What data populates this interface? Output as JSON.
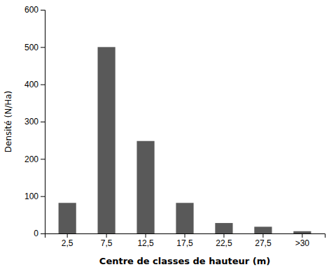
{
  "chart_data": {
    "type": "bar",
    "categories": [
      "2,5",
      "7,5",
      "12,5",
      "17,5",
      "22,5",
      "27,5",
      ">30"
    ],
    "values": [
      82,
      500,
      248,
      82,
      28,
      18,
      6
    ],
    "color": "#595959",
    "xlabel": "Centre de classes de hauteur (m)",
    "ylabel": "Densité (N/Ha)",
    "ylim": [
      0,
      600
    ],
    "yticks": [
      0,
      100,
      200,
      300,
      400,
      500,
      600
    ]
  }
}
